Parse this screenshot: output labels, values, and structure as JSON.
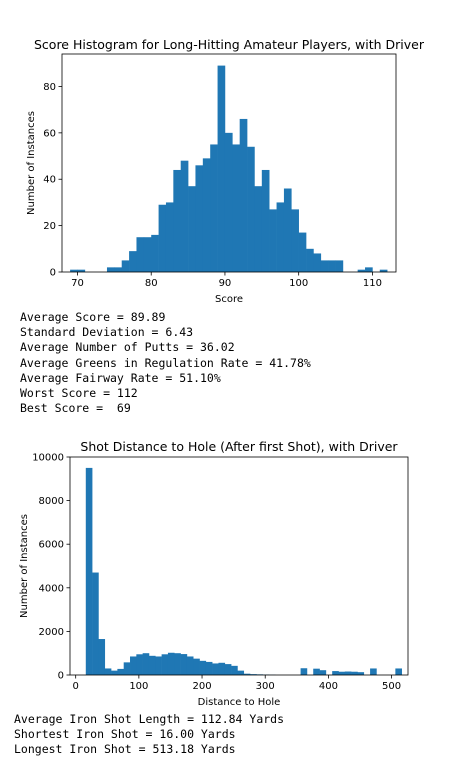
{
  "chart_data": [
    {
      "type": "bar",
      "title": "Score Histogram for Long-Hitting Amateur Players, with Driver",
      "xlabel": "Score",
      "ylabel": "Number of Instances",
      "xlim": [
        67.9,
        113.2
      ],
      "ylim": [
        0,
        94
      ],
      "xticks": [
        70,
        80,
        90,
        100,
        110
      ],
      "yticks": [
        0,
        20,
        40,
        60,
        80
      ],
      "bin_width": 1.0,
      "bins": [
        {
          "x": 69,
          "v": 1
        },
        {
          "x": 70,
          "v": 1
        },
        {
          "x": 71,
          "v": 0
        },
        {
          "x": 72,
          "v": 0
        },
        {
          "x": 73,
          "v": 0
        },
        {
          "x": 74,
          "v": 2
        },
        {
          "x": 75,
          "v": 2
        },
        {
          "x": 76,
          "v": 5
        },
        {
          "x": 77,
          "v": 9
        },
        {
          "x": 78,
          "v": 15
        },
        {
          "x": 79,
          "v": 15
        },
        {
          "x": 80,
          "v": 16
        },
        {
          "x": 81,
          "v": 29
        },
        {
          "x": 82,
          "v": 30
        },
        {
          "x": 83,
          "v": 44
        },
        {
          "x": 84,
          "v": 48
        },
        {
          "x": 85,
          "v": 37
        },
        {
          "x": 86,
          "v": 46
        },
        {
          "x": 87,
          "v": 49
        },
        {
          "x": 88,
          "v": 55
        },
        {
          "x": 89,
          "v": 89
        },
        {
          "x": 90,
          "v": 60
        },
        {
          "x": 91,
          "v": 55
        },
        {
          "x": 92,
          "v": 66
        },
        {
          "x": 93,
          "v": 54
        },
        {
          "x": 94,
          "v": 37
        },
        {
          "x": 95,
          "v": 44
        },
        {
          "x": 96,
          "v": 27
        },
        {
          "x": 97,
          "v": 30
        },
        {
          "x": 98,
          "v": 36
        },
        {
          "x": 99,
          "v": 27
        },
        {
          "x": 100,
          "v": 17
        },
        {
          "x": 101,
          "v": 10
        },
        {
          "x": 102,
          "v": 8
        },
        {
          "x": 103,
          "v": 5
        },
        {
          "x": 104,
          "v": 5
        },
        {
          "x": 105,
          "v": 5
        },
        {
          "x": 106,
          "v": 0
        },
        {
          "x": 107,
          "v": 0
        },
        {
          "x": 108,
          "v": 1
        },
        {
          "x": 109,
          "v": 2
        },
        {
          "x": 110,
          "v": 0
        },
        {
          "x": 111,
          "v": 1
        }
      ]
    },
    {
      "type": "bar",
      "title": "Shot Distance to Hole (After first Shot), with Driver",
      "xlabel": "Distance to Hole",
      "ylabel": "Number of Instances",
      "xlim": [
        -9,
        526
      ],
      "ylim": [
        0,
        10000
      ],
      "xticks": [
        0,
        100,
        200,
        300,
        400,
        500
      ],
      "yticks": [
        0,
        2000,
        4000,
        6000,
        8000,
        10000
      ],
      "bin_width": 10,
      "bins": [
        {
          "x": 16,
          "v": 9500
        },
        {
          "x": 26,
          "v": 4700
        },
        {
          "x": 36,
          "v": 1650
        },
        {
          "x": 46,
          "v": 300
        },
        {
          "x": 56,
          "v": 200
        },
        {
          "x": 66,
          "v": 280
        },
        {
          "x": 76,
          "v": 580
        },
        {
          "x": 86,
          "v": 850
        },
        {
          "x": 96,
          "v": 950
        },
        {
          "x": 106,
          "v": 1000
        },
        {
          "x": 116,
          "v": 880
        },
        {
          "x": 126,
          "v": 850
        },
        {
          "x": 136,
          "v": 950
        },
        {
          "x": 146,
          "v": 1020
        },
        {
          "x": 156,
          "v": 1000
        },
        {
          "x": 166,
          "v": 960
        },
        {
          "x": 176,
          "v": 850
        },
        {
          "x": 186,
          "v": 750
        },
        {
          "x": 196,
          "v": 650
        },
        {
          "x": 206,
          "v": 600
        },
        {
          "x": 216,
          "v": 530
        },
        {
          "x": 226,
          "v": 560
        },
        {
          "x": 236,
          "v": 500
        },
        {
          "x": 246,
          "v": 420
        },
        {
          "x": 256,
          "v": 200
        },
        {
          "x": 266,
          "v": 60
        },
        {
          "x": 276,
          "v": 40
        },
        {
          "x": 286,
          "v": 30
        },
        {
          "x": 296,
          "v": 20
        },
        {
          "x": 306,
          "v": 10
        },
        {
          "x": 316,
          "v": 0
        },
        {
          "x": 326,
          "v": 0
        },
        {
          "x": 336,
          "v": 0
        },
        {
          "x": 346,
          "v": 0
        },
        {
          "x": 356,
          "v": 310
        },
        {
          "x": 366,
          "v": 0
        },
        {
          "x": 376,
          "v": 290
        },
        {
          "x": 386,
          "v": 220
        },
        {
          "x": 396,
          "v": 0
        },
        {
          "x": 406,
          "v": 180
        },
        {
          "x": 416,
          "v": 150
        },
        {
          "x": 426,
          "v": 160
        },
        {
          "x": 436,
          "v": 150
        },
        {
          "x": 446,
          "v": 130
        },
        {
          "x": 456,
          "v": 0
        },
        {
          "x": 466,
          "v": 300
        },
        {
          "x": 476,
          "v": 0
        },
        {
          "x": 486,
          "v": 0
        },
        {
          "x": 496,
          "v": 0
        },
        {
          "x": 506,
          "v": 300
        }
      ]
    }
  ],
  "stats1": [
    "Average Score = 89.89",
    "Standard Deviation = 6.43",
    "Average Number of Putts = 36.02",
    "Average Greens in Regulation Rate = 41.78%",
    "Average Fairway Rate = 51.10%",
    "Worst Score = 112",
    "Best Score =  69"
  ],
  "stats2": [
    "Average Iron Shot Length = 112.84 Yards",
    "Shortest Iron Shot = 16.00 Yards",
    "Longest Iron Shot = 513.18 Yards"
  ],
  "colors": {
    "bar": "#1f77b4",
    "axis": "#000000",
    "background": "#ffffff"
  }
}
